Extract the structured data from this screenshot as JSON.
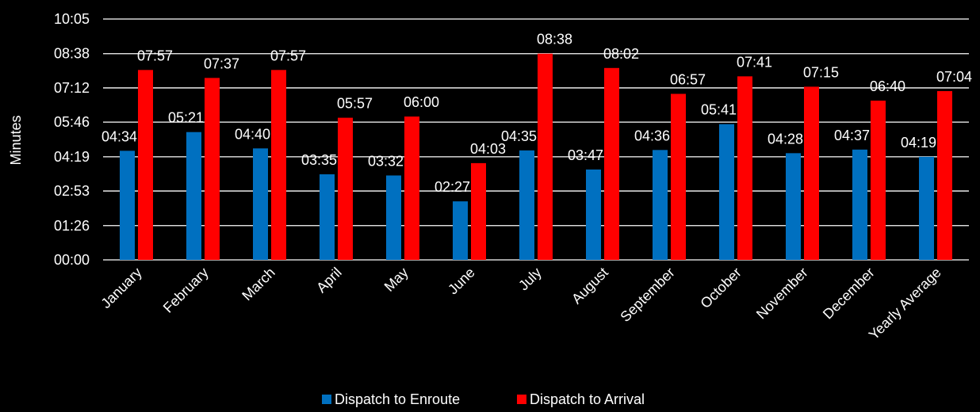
{
  "chart_data": {
    "type": "bar",
    "title": "",
    "xlabel": "",
    "ylabel": "Minutes",
    "categories": [
      "January",
      "February",
      "March",
      "April",
      "May",
      "June",
      "July",
      "August",
      "September",
      "October",
      "November",
      "December",
      "Yearly Average"
    ],
    "series": [
      {
        "name": "Dispatch to Enroute",
        "color": "#0070C0",
        "values": [
          "04:34",
          "05:21",
          "04:40",
          "03:35",
          "03:32",
          "02:27",
          "04:35",
          "03:47",
          "04:36",
          "05:41",
          "04:28",
          "04:37",
          "04:19"
        ]
      },
      {
        "name": "Dispatch to Arrival",
        "color": "#FF0000",
        "values": [
          "07:57",
          "07:37",
          "07:57",
          "05:57",
          "06:00",
          "04:03",
          "08:38",
          "08:02",
          "06:57",
          "07:41",
          "07:15",
          "06:40",
          "07:04"
        ]
      }
    ],
    "y_ticks": [
      "00:00",
      "01:26",
      "02:53",
      "04:19",
      "05:46",
      "07:12",
      "08:38",
      "10:05"
    ],
    "ylim": [
      "00:00",
      "10:05"
    ],
    "grid": true,
    "legend_position": "bottom-center"
  }
}
